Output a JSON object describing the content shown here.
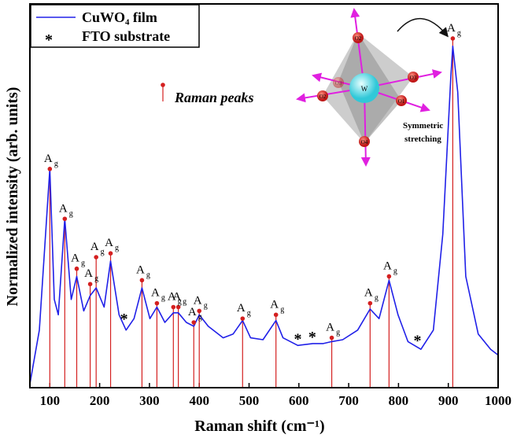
{
  "chart_data": {
    "type": "spectrum",
    "xlabel": "Raman shift (cm⁻¹)",
    "ylabel": "Normalized intensity (arb. units)",
    "xlim": [
      60,
      1000
    ],
    "ylim": [
      0,
      1
    ],
    "xticks": [
      100,
      200,
      300,
      400,
      500,
      600,
      700,
      800,
      900,
      1000
    ],
    "series": [
      {
        "name": "CuWO₄ film",
        "color": "#2020e8",
        "x": [
          60,
          79,
          100,
          109,
          117,
          130,
          143,
          154,
          168,
          181,
          193,
          209,
          222,
          239,
          253,
          269,
          285,
          301,
          315,
          331,
          348,
          358,
          374,
          389,
          400,
          418,
          448,
          468,
          487,
          503,
          528,
          554,
          568,
          598,
          628,
          649,
          666,
          688,
          718,
          743,
          761,
          781,
          799,
          819,
          845,
          870,
          889,
          905,
          909,
          919,
          935,
          960,
          985,
          1000
        ],
        "values": [
          0.01,
          0.15,
          0.57,
          0.23,
          0.19,
          0.44,
          0.23,
          0.29,
          0.2,
          0.24,
          0.26,
          0.21,
          0.33,
          0.19,
          0.15,
          0.18,
          0.26,
          0.18,
          0.21,
          0.17,
          0.195,
          0.195,
          0.17,
          0.16,
          0.19,
          0.16,
          0.13,
          0.14,
          0.175,
          0.13,
          0.125,
          0.175,
          0.13,
          0.11,
          0.115,
          0.115,
          0.12,
          0.125,
          0.15,
          0.205,
          0.18,
          0.28,
          0.19,
          0.12,
          0.1,
          0.15,
          0.4,
          0.81,
          0.89,
          0.77,
          0.29,
          0.14,
          0.1,
          0.085
        ]
      }
    ],
    "peaks": {
      "name": "Raman peaks",
      "color": "#d42020",
      "label_main": "A",
      "label_sub": "g",
      "x": [
        100,
        130,
        154,
        181,
        193,
        222,
        285,
        315,
        348,
        358,
        389,
        400,
        487,
        554,
        666,
        743,
        781,
        909
      ],
      "values": [
        0.57,
        0.44,
        0.31,
        0.27,
        0.34,
        0.35,
        0.28,
        0.22,
        0.21,
        0.21,
        0.17,
        0.2,
        0.18,
        0.19,
        0.13,
        0.22,
        0.29,
        0.91
      ]
    },
    "substrate": {
      "name": "FTO substrate",
      "marker": "*",
      "x": [
        249,
        598,
        627,
        838
      ]
    },
    "inset": {
      "center": "W",
      "atoms": [
        "O2",
        "O3",
        "O1",
        "O4",
        "O2",
        "O3"
      ],
      "caption": [
        "Symmetric",
        "stretching"
      ]
    }
  }
}
